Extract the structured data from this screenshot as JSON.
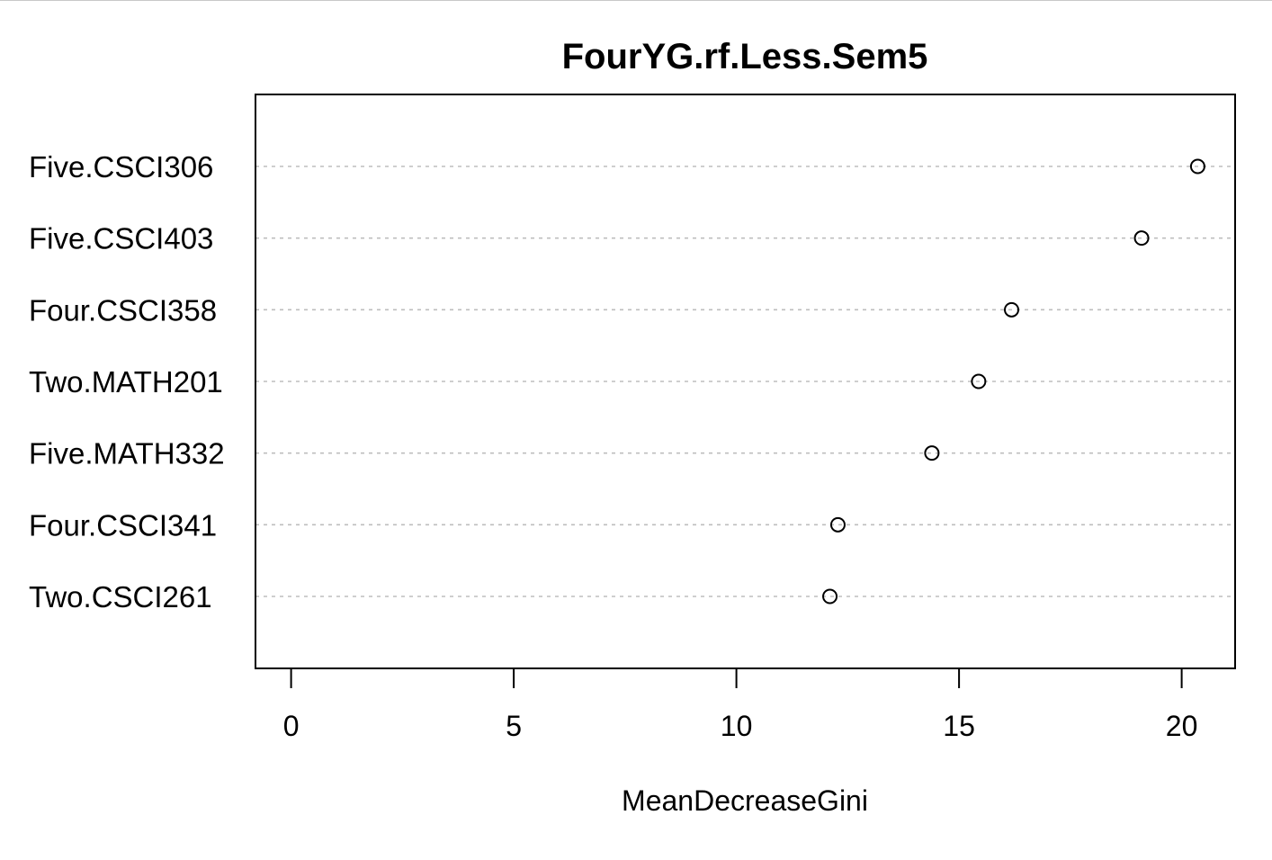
{
  "chart_data": {
    "type": "scatter",
    "subtype": "dotchart",
    "title": "FourYG.rf.Less.Sem5",
    "xlabel": "MeanDecreaseGini",
    "ylabel": "",
    "categories": [
      "Five.CSCI306",
      "Five.CSCI403",
      "Four.CSCI358",
      "Two.MATH201",
      "Five.MATH332",
      "Four.CSCI341",
      "Two.CSCI261"
    ],
    "values": [
      20.36,
      19.1,
      16.18,
      15.44,
      14.39,
      12.28,
      12.1
    ],
    "xlim": [
      -0.8,
      21.2
    ],
    "xticks": [
      "0",
      "5",
      "10",
      "15",
      "20"
    ],
    "grid": "horizontal dashed",
    "marker": "open-circle",
    "colors": {
      "marker": "#000000",
      "grid": "#bebebe",
      "frame": "#000000"
    }
  }
}
